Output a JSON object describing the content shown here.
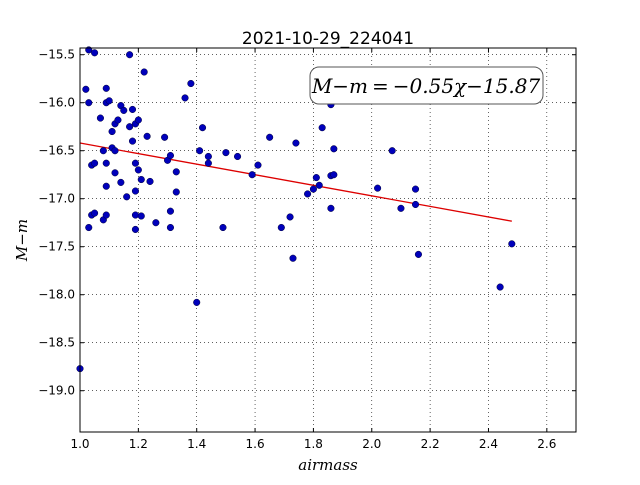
{
  "chart_data": {
    "type": "scatter",
    "title": "2021-10-29_224041",
    "xlabel": "airmass",
    "ylabel": "M−m",
    "xlim": [
      1.0,
      2.7
    ],
    "ylim": [
      -19.43,
      -15.43
    ],
    "x_ticks": [
      1.0,
      1.2,
      1.4,
      1.6,
      1.8,
      2.0,
      2.2,
      2.4,
      2.6
    ],
    "x_tick_labels": [
      "1.0",
      "1.2",
      "1.4",
      "1.6",
      "1.8",
      "2.0",
      "2.2",
      "2.4",
      "2.6"
    ],
    "y_ticks": [
      -15.5,
      -16.0,
      -16.5,
      -17.0,
      -17.5,
      -18.0,
      -18.5,
      -19.0
    ],
    "y_tick_labels": [
      "−15.5",
      "−16.0",
      "−16.5",
      "−17.0",
      "−17.5",
      "−18.0",
      "−18.5",
      "−19.0"
    ],
    "grid": true,
    "annotation": "M−m = −0.55χ−15.87",
    "point_color": "#0000bb",
    "fit_color": "#dd0000",
    "fit": {
      "slope": -0.55,
      "intercept": -15.87,
      "x_range": [
        1.0,
        2.48
      ]
    },
    "points": [
      [
        1.0,
        -18.77
      ],
      [
        1.02,
        -15.86
      ],
      [
        1.03,
        -15.45
      ],
      [
        1.03,
        -16.0
      ],
      [
        1.04,
        -16.65
      ],
      [
        1.04,
        -17.17
      ],
      [
        1.05,
        -16.63
      ],
      [
        1.05,
        -17.15
      ],
      [
        1.03,
        -17.3
      ],
      [
        1.05,
        -15.48
      ],
      [
        1.06,
        -15.35
      ],
      [
        1.07,
        -16.16
      ],
      [
        1.08,
        -16.5
      ],
      [
        1.08,
        -17.22
      ],
      [
        1.09,
        -15.85
      ],
      [
        1.09,
        -16.0
      ],
      [
        1.09,
        -16.63
      ],
      [
        1.09,
        -16.87
      ],
      [
        1.09,
        -17.17
      ],
      [
        1.1,
        -15.98
      ],
      [
        1.11,
        -16.3
      ],
      [
        1.11,
        -16.47
      ],
      [
        1.12,
        -16.22
      ],
      [
        1.12,
        -16.5
      ],
      [
        1.12,
        -16.73
      ],
      [
        1.13,
        -16.18
      ],
      [
        1.14,
        -16.83
      ],
      [
        1.14,
        -16.03
      ],
      [
        1.15,
        -16.08
      ],
      [
        1.16,
        -16.98
      ],
      [
        1.17,
        -15.5
      ],
      [
        1.17,
        -16.25
      ],
      [
        1.18,
        -16.07
      ],
      [
        1.18,
        -16.4
      ],
      [
        1.19,
        -16.22
      ],
      [
        1.19,
        -16.63
      ],
      [
        1.19,
        -16.92
      ],
      [
        1.19,
        -17.17
      ],
      [
        1.19,
        -17.32
      ],
      [
        1.2,
        -16.18
      ],
      [
        1.2,
        -16.7
      ],
      [
        1.21,
        -17.18
      ],
      [
        1.21,
        -16.8
      ],
      [
        1.22,
        -15.68
      ],
      [
        1.23,
        -16.35
      ],
      [
        1.24,
        -16.82
      ],
      [
        1.26,
        -17.25
      ],
      [
        1.29,
        -16.36
      ],
      [
        1.3,
        -16.6
      ],
      [
        1.31,
        -16.55
      ],
      [
        1.31,
        -17.13
      ],
      [
        1.31,
        -17.3
      ],
      [
        1.33,
        -16.72
      ],
      [
        1.33,
        -16.93
      ],
      [
        1.36,
        -15.95
      ],
      [
        1.38,
        -15.8
      ],
      [
        1.4,
        -18.08
      ],
      [
        1.41,
        -16.5
      ],
      [
        1.42,
        -16.26
      ],
      [
        1.44,
        -16.56
      ],
      [
        1.44,
        -16.63
      ],
      [
        1.49,
        -17.3
      ],
      [
        1.5,
        -16.52
      ],
      [
        1.54,
        -16.56
      ],
      [
        1.59,
        -16.75
      ],
      [
        1.61,
        -16.65
      ],
      [
        1.65,
        -16.36
      ],
      [
        1.69,
        -17.3
      ],
      [
        1.72,
        -17.19
      ],
      [
        1.73,
        -17.62
      ],
      [
        1.74,
        -16.42
      ],
      [
        1.78,
        -16.95
      ],
      [
        1.8,
        -16.9
      ],
      [
        1.81,
        -16.78
      ],
      [
        1.82,
        -16.86
      ],
      [
        1.83,
        -16.26
      ],
      [
        1.86,
        -16.76
      ],
      [
        1.86,
        -17.1
      ],
      [
        1.87,
        -16.75
      ],
      [
        1.87,
        -16.48
      ],
      [
        1.86,
        -16.02
      ],
      [
        2.02,
        -16.89
      ],
      [
        2.07,
        -16.5
      ],
      [
        2.1,
        -17.1
      ],
      [
        2.15,
        -16.9
      ],
      [
        2.15,
        -17.06
      ],
      [
        2.16,
        -17.58
      ],
      [
        2.44,
        -17.92
      ],
      [
        2.48,
        -17.47
      ]
    ]
  }
}
